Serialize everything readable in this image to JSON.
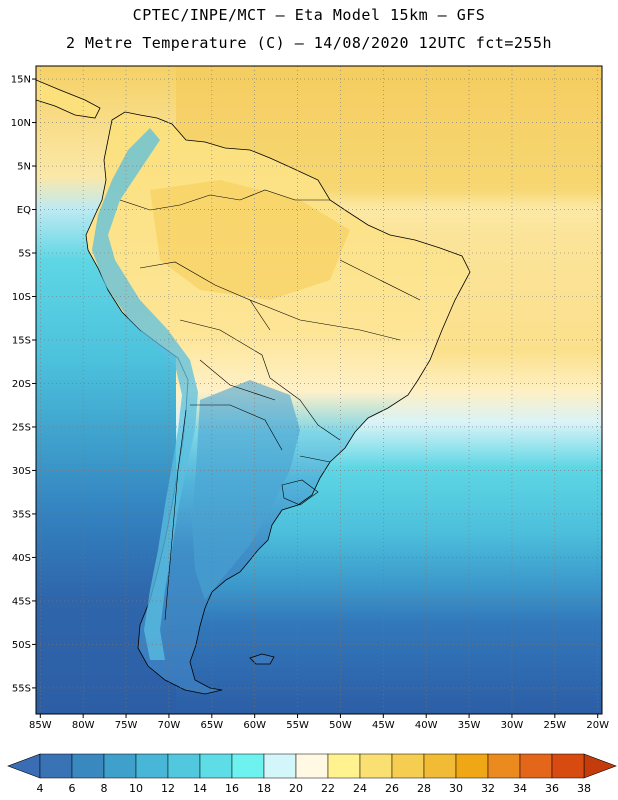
{
  "header": {
    "line1": "CPTEC/INPE/MCT –  Eta Model 15km – GFS",
    "line2": "2 Metre Temperature (C) – 14/08/2020 12UTC fct=255h"
  },
  "map": {
    "lat_labels": [
      "15N",
      "10N",
      "5N",
      "EQ",
      "5S",
      "10S",
      "15S",
      "20S",
      "25S",
      "30S",
      "35S",
      "40S",
      "45S",
      "50S",
      "55S"
    ],
    "lon_labels": [
      "85W",
      "80W",
      "75W",
      "70W",
      "65W",
      "60W",
      "55W",
      "50W",
      "45W",
      "40W",
      "35W",
      "30W",
      "25W",
      "20W"
    ],
    "lat_values": [
      15,
      10,
      5,
      0,
      -5,
      -10,
      -15,
      -20,
      -25,
      -30,
      -35,
      -40,
      -45,
      -50,
      -55
    ],
    "lon_values": [
      -85,
      -80,
      -75,
      -70,
      -65,
      -60,
      -55,
      -50,
      -45,
      -40,
      -35,
      -30,
      -25,
      -20
    ],
    "extent": {
      "lon_min": -85.5,
      "lon_max": -19.5,
      "lat_min": -58,
      "lat_max": 16.5
    }
  },
  "colorbar": {
    "labels": [
      "4",
      "6",
      "8",
      "10",
      "12",
      "14",
      "16",
      "18",
      "20",
      "22",
      "24",
      "26",
      "28",
      "30",
      "32",
      "34",
      "36",
      "38"
    ],
    "colors": [
      "#3a73b5",
      "#3a88c0",
      "#3fa1cb",
      "#48b6d6",
      "#52c8de",
      "#5edde6",
      "#6ef2f0",
      "#d3f6fa",
      "#fff8e3",
      "#fff28f",
      "#fae072",
      "#f5cd50",
      "#f2bb35",
      "#f0a716",
      "#ea8a1f",
      "#e3661a",
      "#d74a10"
    ],
    "low_color": "#3a6db3",
    "high_color": "#c43c0c"
  },
  "colors": {
    "ocean_deep": "#2f64a8",
    "ocean_mid": "#3b8fc6",
    "ocean_light": "#4fc0dc",
    "ocean_cyan": "#5ed6e4",
    "ocean_pale": "#cdeef6",
    "tropical_sea": "#f5d166",
    "land_warm": "#fce08a",
    "land_hot": "#f6cc55"
  }
}
